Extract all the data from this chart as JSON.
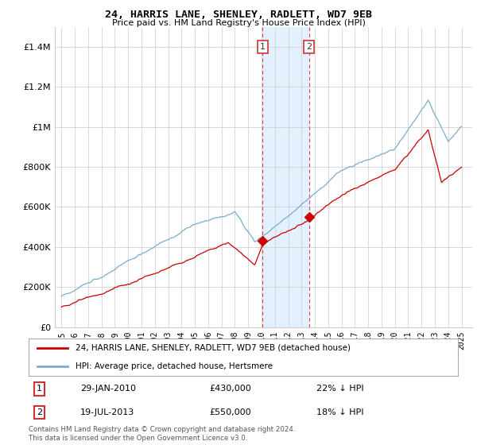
{
  "title": "24, HARRIS LANE, SHENLEY, RADLETT, WD7 9EB",
  "subtitle": "Price paid vs. HM Land Registry's House Price Index (HPI)",
  "ylim": [
    0,
    1500000
  ],
  "yticks": [
    0,
    200000,
    400000,
    600000,
    800000,
    1000000,
    1200000,
    1400000
  ],
  "ytick_labels": [
    "£0",
    "£200K",
    "£400K",
    "£600K",
    "£800K",
    "£1M",
    "£1.2M",
    "£1.4M"
  ],
  "year_start": 1995,
  "year_end": 2025,
  "sale1_date": 2010.08,
  "sale1_price": 430000,
  "sale2_date": 2013.55,
  "sale2_price": 550000,
  "red_line_color": "#cc0000",
  "blue_line_color": "#7aadcf",
  "sale_marker_color": "#cc0000",
  "shaded_region_color": "#ddeeff",
  "grid_color": "#cccccc",
  "background_color": "#ffffff",
  "legend_red_label": "24, HARRIS LANE, SHENLEY, RADLETT, WD7 9EB (detached house)",
  "legend_blue_label": "HPI: Average price, detached house, Hertsmere",
  "note1_label": "1",
  "note1_date": "29-JAN-2010",
  "note1_price": "£430,000",
  "note1_hpi": "22% ↓ HPI",
  "note2_label": "2",
  "note2_date": "19-JUL-2013",
  "note2_price": "£550,000",
  "note2_hpi": "18% ↓ HPI",
  "footer": "Contains HM Land Registry data © Crown copyright and database right 2024.\nThis data is licensed under the Open Government Licence v3.0."
}
